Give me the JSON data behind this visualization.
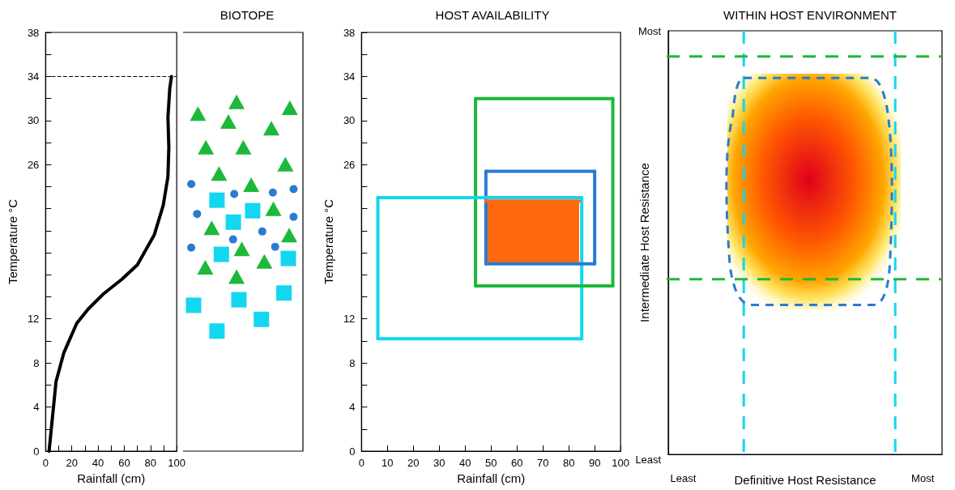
{
  "chart_data": [
    {
      "type": "line",
      "xlabel": "Rainfall (cm)",
      "ylabel": "Temperature °C",
      "marker": "none",
      "line_style": "solid",
      "xlim": [
        0,
        100
      ],
      "xticks": [
        0,
        {
          "value": 10,
          "label": null
        },
        20,
        {
          "value": 30,
          "label": null
        },
        40,
        {
          "value": 50,
          "label": null
        },
        60,
        {
          "value": 70,
          "label": null
        },
        80,
        {
          "value": 90,
          "label": null
        },
        100
      ],
      "ylim": [
        0,
        38
      ],
      "yticks": [
        0,
        {
          "value": 2,
          "label": null
        },
        4,
        {
          "value": 6,
          "label": null
        },
        8,
        {
          "value": 10,
          "label": null
        },
        12,
        {
          "value": 14,
          "label": null
        },
        {
          "value": 16,
          "label": null
        },
        {
          "value": 18,
          "label": null
        },
        {
          "value": 20,
          "label": null
        },
        {
          "value": 22,
          "label": null
        },
        {
          "value": 24,
          "label": null
        },
        26,
        {
          "value": 28,
          "label": null
        },
        30,
        {
          "value": 32,
          "label": null
        },
        34,
        {
          "value": 36,
          "label": null
        },
        38
      ],
      "series": [
        {
          "color": "#000000",
          "x": [
            2.6,
            5.9,
            7.9,
            13.8,
            23.7,
            32.5,
            44.4,
            58.2,
            70,
            82.8,
            89.7,
            93.3,
            94,
            93.3,
            94.7,
            96
          ],
          "values": [
            0,
            3.9,
            6.3,
            8.9,
            11.6,
            12.9,
            14.3,
            15.6,
            16.9,
            19.6,
            22.3,
            24.9,
            27.6,
            30.3,
            32.9,
            34
          ]
        }
      ],
      "ref_lines": [
        {
          "axis": "y",
          "value": 34,
          "color": "#000000",
          "line_style": "dashed"
        }
      ]
    },
    {
      "type": "other",
      "title": "BIOTOPE"
    },
    {
      "type": "line",
      "title": "HOST AVAILABILITY",
      "xlabel": "Rainfall (cm)",
      "ylabel": "Temperature °C",
      "marker": "none",
      "line_style": "solid",
      "xlim": [
        0,
        100
      ],
      "xticks": [
        0,
        10,
        20,
        30,
        40,
        50,
        60,
        70,
        80,
        90,
        100
      ],
      "ylim": [
        0,
        38
      ],
      "yticks": [
        0,
        {
          "value": 2,
          "label": null
        },
        4,
        {
          "value": 6,
          "label": null
        },
        8,
        {
          "value": 10,
          "label": null
        },
        12,
        {
          "value": 14,
          "label": null
        },
        {
          "value": 16,
          "label": null
        },
        {
          "value": 18,
          "label": null
        },
        {
          "value": 20,
          "label": null
        },
        {
          "value": 22,
          "label": null
        },
        {
          "value": 24,
          "label": null
        },
        26,
        {
          "value": 28,
          "label": null
        },
        30,
        {
          "value": 32,
          "label": null
        },
        34,
        {
          "value": 36,
          "label": null
        },
        38
      ],
      "series": [
        {
          "color": "#13d6f0",
          "x": [
            6.3,
            85
          ],
          "values": [
            10.2,
            10.2
          ],
          "errors": [
            [
              10.2,
              23
            ],
            [
              10.2,
              23
            ]
          ]
        },
        {
          "color": "#13d6f0",
          "x": [
            6.3,
            85
          ],
          "values": [
            23,
            23
          ]
        },
        {
          "color": "#1db83a",
          "x": [
            44,
            97
          ],
          "values": [
            15,
            15
          ],
          "errors": [
            [
              15,
              32
            ],
            [
              15,
              32
            ]
          ]
        },
        {
          "color": "#1db83a",
          "x": [
            44,
            97
          ],
          "values": [
            32,
            32
          ]
        },
        {
          "color": "#2a7bd0",
          "x": [
            48,
            90
          ],
          "values": [
            17,
            17
          ],
          "errors": [
            [
              17,
              25.4
            ],
            [
              17,
              25.4
            ]
          ]
        },
        {
          "color": "#2a7bd0",
          "x": [
            48,
            90
          ],
          "values": [
            25.4,
            25.4
          ]
        },
        {
          "color": "#ff6a10",
          "x": [
            48,
            84
          ],
          "values": [
            22.7,
            22.7
          ],
          "lower": [
            17,
            17
          ],
          "upper": [
            22.7,
            22.7
          ]
        }
      ]
    },
    {
      "type": "other",
      "title": "WITHIN HOST ENVIRONMENT",
      "xlabel": "Definitive Host Resistance",
      "ylabel": "Intermediate Host Resistance",
      "annotations": [
        "Least",
        "Most",
        "Least",
        "Most"
      ]
    }
  ]
}
